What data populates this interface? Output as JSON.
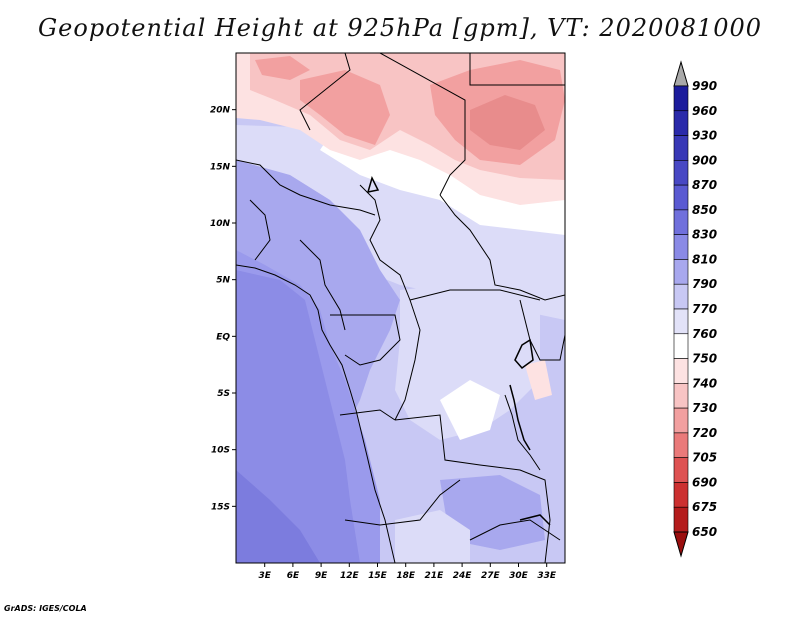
{
  "plot": {
    "title": "Geopotential Height at 925hPa [gpm], VT: 2020081000",
    "credit": "GrADS: IGES/COLA"
  },
  "chart_data": {
    "type": "heatmap",
    "title": "Geopotential Height at 925hPa [gpm], VT: 2020081000",
    "variable": "Geopotential Height",
    "level": "925hPa",
    "units": "gpm",
    "valid_time": "2020081000",
    "x_ticks": [
      "3E",
      "6E",
      "9E",
      "12E",
      "15E",
      "18E",
      "21E",
      "24E",
      "27E",
      "30E",
      "33E"
    ],
    "y_ticks": [
      "20N",
      "15N",
      "10N",
      "5N",
      "EQ",
      "5S",
      "10S",
      "15S"
    ],
    "lon_range": [
      0,
      35
    ],
    "lat_range": [
      -20,
      25
    ],
    "colorbar": {
      "levels": [
        "990",
        "960",
        "930",
        "900",
        "870",
        "850",
        "830",
        "810",
        "790",
        "770",
        "760",
        "750",
        "740",
        "730",
        "720",
        "705",
        "690",
        "675",
        "650"
      ],
      "colors": [
        "#0a0a8c",
        "#1c1c9c",
        "#2a2aaa",
        "#3838b6",
        "#4848c4",
        "#5a5ad2",
        "#7070dc",
        "#8a8ae6",
        "#a8a8ee",
        "#c8c8f4",
        "#e2e2f8",
        "#ffffff",
        "#fde2e2",
        "#f8c4c4",
        "#f2a0a0",
        "#ea7a7a",
        "#de5252",
        "#cc3030",
        "#b41c1c",
        "#9a0e0e"
      ]
    }
  }
}
